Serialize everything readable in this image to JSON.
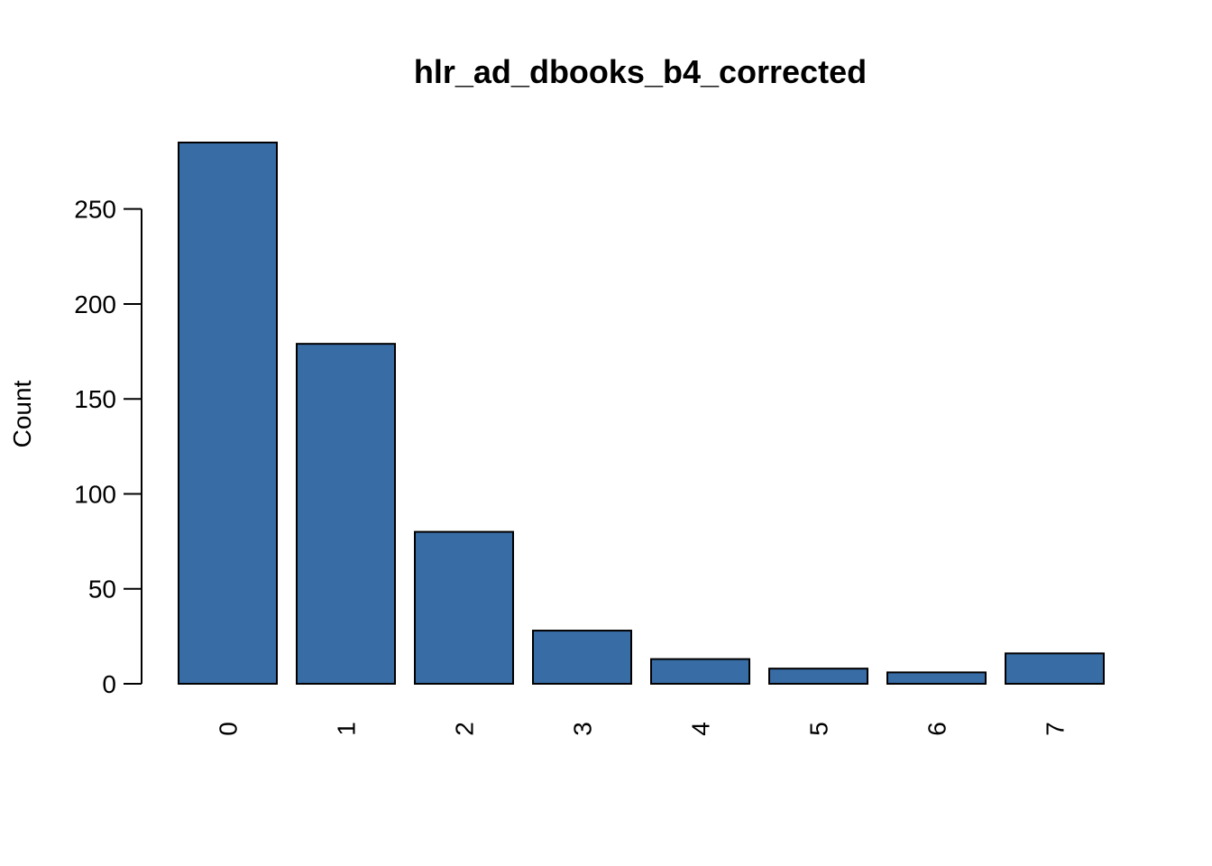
{
  "chart_data": {
    "type": "bar",
    "title": "hlr_ad_dbooks_b4_corrected",
    "xlabel": "",
    "ylabel": "Count",
    "categories": [
      "0",
      "1",
      "2",
      "3",
      "4",
      "5",
      "6",
      "7"
    ],
    "values": [
      285,
      179,
      80,
      28,
      13,
      8,
      6,
      16
    ],
    "ylim": [
      0,
      285
    ],
    "yticks": [
      0,
      50,
      100,
      150,
      200,
      250
    ],
    "ytick_labels": [
      "0",
      "50",
      "100",
      "150",
      "200",
      "250"
    ],
    "bar_color": "#386CA5",
    "edge_color": "#000000",
    "x_tick_label_rotation": "vertical",
    "grid": false,
    "legend": "none"
  }
}
